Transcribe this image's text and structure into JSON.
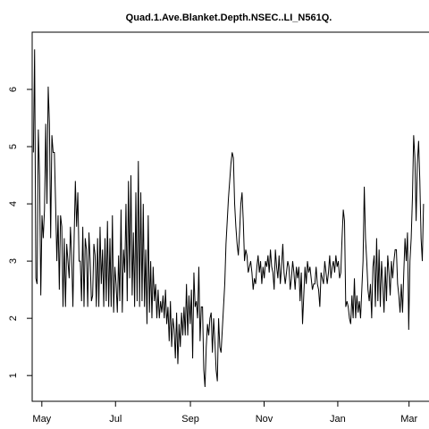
{
  "chart_data": {
    "type": "line",
    "title": "Quad.1.Ave.Blanket.Depth.NSEC..LI_N561Q.",
    "xlabel": "",
    "ylabel": "",
    "x_ticks": [
      "May",
      "Jul",
      "Sep",
      "Nov",
      "Jan",
      "Mar"
    ],
    "y_ticks": [
      1,
      2,
      3,
      4,
      5,
      6
    ],
    "xlim_days": [
      -8,
      322
    ],
    "ylim": [
      0.55,
      7.0
    ],
    "series": [
      {
        "values": [
          4.9,
          6.7,
          2.7,
          2.6,
          5.3,
          4.5,
          2.4,
          3.8,
          3.4,
          3.9,
          5.4,
          4.0,
          6.05,
          5.4,
          3.4,
          5.2,
          4.9,
          4.9,
          4.0,
          3.0,
          3.8,
          2.5,
          3.8,
          3.6,
          2.2,
          3.4,
          2.2,
          3.3,
          3.0,
          2.7,
          3.6,
          3.1,
          2.2,
          3.4,
          4.4,
          3.6,
          4.2,
          3.0,
          3.0,
          2.3,
          3.6,
          2.2,
          3.4,
          3.2,
          2.2,
          3.5,
          3.0,
          2.3,
          2.4,
          3.3,
          3.1,
          2.2,
          3.4,
          2.2,
          3.6,
          2.6,
          3.2,
          2.2,
          3.4,
          2.3,
          3.7,
          2.2,
          3.4,
          2.2,
          3.8,
          2.1,
          2.9,
          2.6,
          2.1,
          3.1,
          2.3,
          3.9,
          2.1,
          3.2,
          2.8,
          4.0,
          2.3,
          4.4,
          2.7,
          4.5,
          2.4,
          3.5,
          2.2,
          4.2,
          2.3,
          4.75,
          2.2,
          4.2,
          2.3,
          4.0,
          2.2,
          3.2,
          1.9,
          3.8,
          2.1,
          3.0,
          2.0,
          2.9,
          2.3,
          2.6,
          2.0,
          2.5,
          2.0,
          2.3,
          2.1,
          2.4,
          2.0,
          2.5,
          1.9,
          2.2,
          1.6,
          2.3,
          1.5,
          2.0,
          1.8,
          1.3,
          2.1,
          1.2,
          1.9,
          1.5,
          2.1,
          1.7,
          2.2,
          1.7,
          2.6,
          1.7,
          2.4,
          1.9,
          2.5,
          1.3,
          2.8,
          2.2,
          2.3,
          2.0,
          2.9,
          1.6,
          2.2,
          2.2,
          1.1,
          0.8,
          1.5,
          1.9,
          1.7,
          2.0,
          2.1,
          1.4,
          2.0,
          1.6,
          1.1,
          0.9,
          2.0,
          1.5,
          1.4,
          1.8,
          2.2,
          2.6,
          3.3,
          3.7,
          4.1,
          4.4,
          4.7,
          4.9,
          4.8,
          4.0,
          3.6,
          3.3,
          3.1,
          3.5,
          4.0,
          4.2,
          3.7,
          3.0,
          3.2,
          3.1,
          2.8,
          2.9,
          3.0,
          2.8,
          2.5,
          2.7,
          2.6,
          2.9,
          3.1,
          2.8,
          3.0,
          2.6,
          2.9,
          2.7,
          3.0,
          2.9,
          3.1,
          2.8,
          3.2,
          2.9,
          2.8,
          2.5,
          3.2,
          2.9,
          2.7,
          3.1,
          2.6,
          2.9,
          3.3,
          2.8,
          2.6,
          2.8,
          3.0,
          2.9,
          2.5,
          2.7,
          3.0,
          2.8,
          2.5,
          2.9,
          2.7,
          2.9,
          2.3,
          2.8,
          1.9,
          2.4,
          2.9,
          2.6,
          3.0,
          2.8,
          2.9,
          2.7,
          2.5,
          2.6,
          2.6,
          2.9,
          2.6,
          2.5,
          2.2,
          2.8,
          2.7,
          2.6,
          3.0,
          2.8,
          2.6,
          2.8,
          3.1,
          2.7,
          2.9,
          3.0,
          2.8,
          3.1,
          2.9,
          3.0,
          2.7,
          2.8,
          3.4,
          3.9,
          3.7,
          2.2,
          2.3,
          2.2,
          2.0,
          1.9,
          2.4,
          2.0,
          2.7,
          2.0,
          2.4,
          2.1,
          2.3,
          2.0,
          2.5,
          3.0,
          4.3,
          3.4,
          3.0,
          2.5,
          2.3,
          2.6,
          2.0,
          2.9,
          3.1,
          2.2,
          3.4,
          2.3,
          3.2,
          2.2,
          3.0,
          2.6,
          2.1,
          2.9,
          2.3,
          3.1,
          2.8,
          2.4,
          3.0,
          2.7,
          3.0,
          3.2,
          3.2,
          2.6,
          2.4,
          2.1,
          2.6,
          2.1,
          2.8,
          3.4,
          3.0,
          3.5,
          1.8,
          3.0,
          3.4,
          4.1,
          5.2,
          4.8,
          3.7,
          4.7,
          5.1,
          4.4,
          3.4,
          3.0,
          4.0
        ]
      }
    ]
  }
}
